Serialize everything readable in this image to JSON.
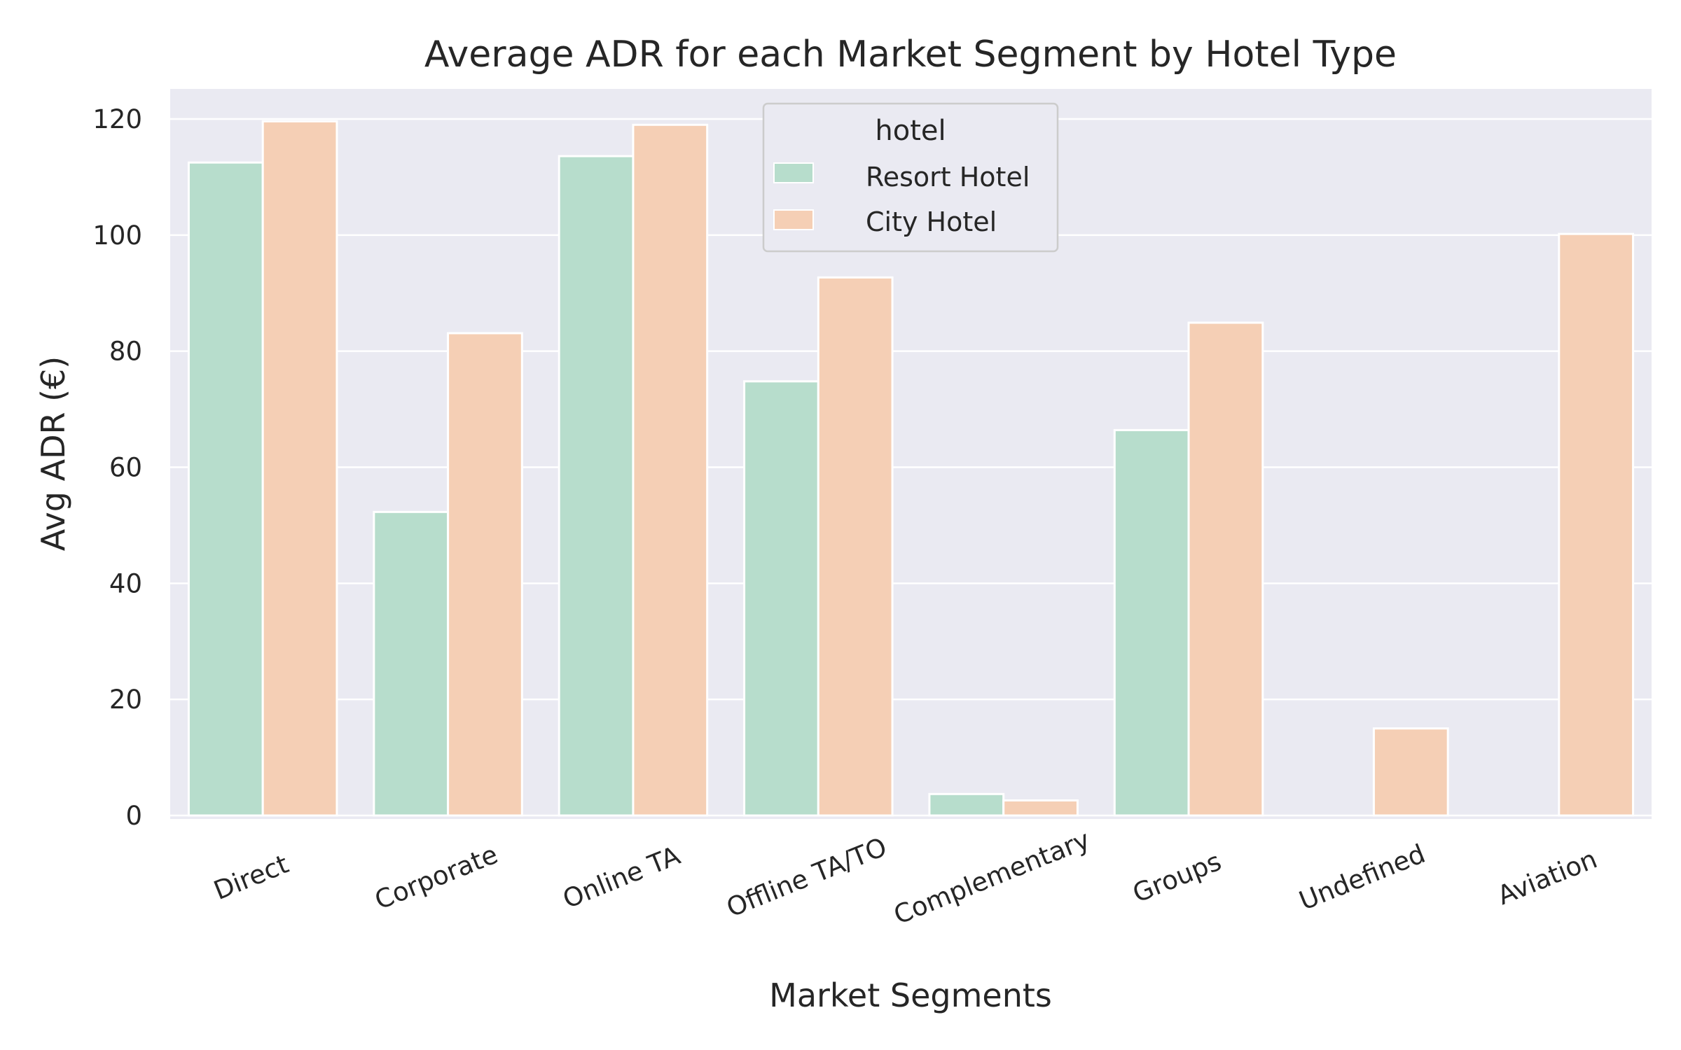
{
  "chart_data": {
    "type": "bar",
    "title": "Average ADR for each Market Segment by Hotel Type",
    "xlabel": "Market Segments",
    "ylabel": "Avg ADR  (€)",
    "ylim": [
      0,
      125
    ],
    "yticks": [
      0,
      20,
      40,
      60,
      80,
      100,
      120
    ],
    "grid": true,
    "categories": [
      "Direct",
      "Corporate",
      "Online TA",
      "Offline TA/TO",
      "Complementary",
      "Groups",
      "Undefined",
      "Aviation"
    ],
    "legend": {
      "title": "hotel",
      "placement": "top-center"
    },
    "series": [
      {
        "name": "Resort Hotel",
        "color": "#b7ddcc",
        "values": [
          112.5,
          52.3,
          113.6,
          74.8,
          3.7,
          66.4,
          null,
          null
        ]
      },
      {
        "name": "City Hotel",
        "color": "#f5cfb5",
        "values": [
          119.6,
          83.1,
          119.0,
          92.7,
          2.6,
          84.9,
          15.0,
          100.2
        ]
      }
    ],
    "colors": {
      "plot_background": "#eaeaf2",
      "grid": "#ffffff",
      "bar_edge": "#ffffff"
    }
  }
}
